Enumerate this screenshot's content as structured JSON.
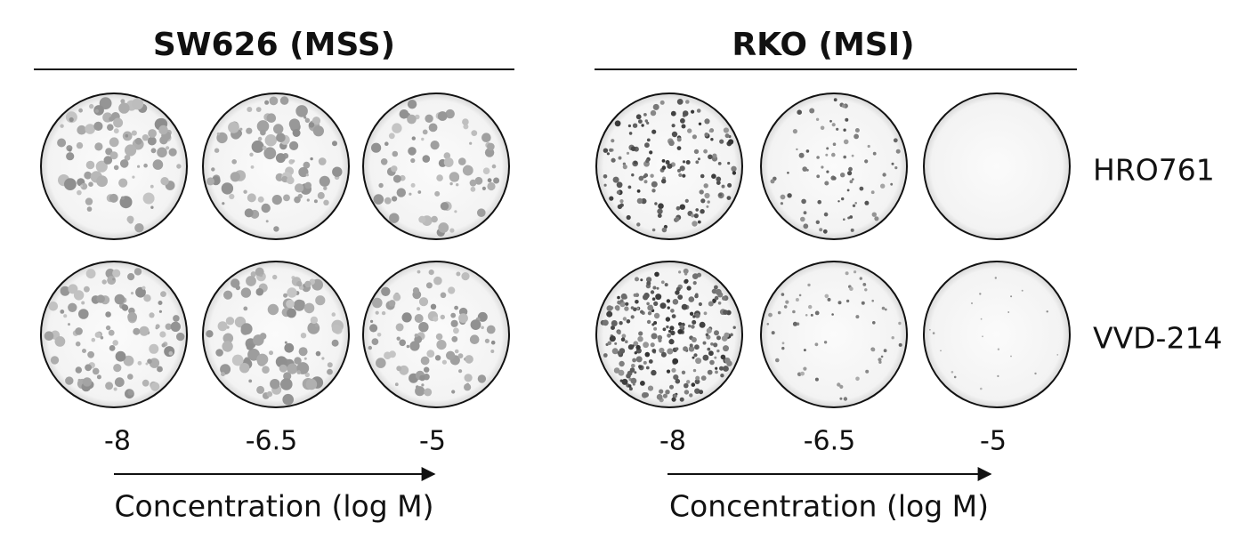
{
  "panels": [
    {
      "title": "SW626 (MSS)",
      "concentrations": [
        -8,
        -6.5,
        -5
      ],
      "axis_label": "Concentration (log M)"
    },
    {
      "title": "RKO (MSI)",
      "concentrations": [
        -8,
        -6.5,
        -5
      ],
      "axis_label": "Concentration (log M)"
    }
  ],
  "rows": [
    "HRO761",
    "VVD-214"
  ]
}
